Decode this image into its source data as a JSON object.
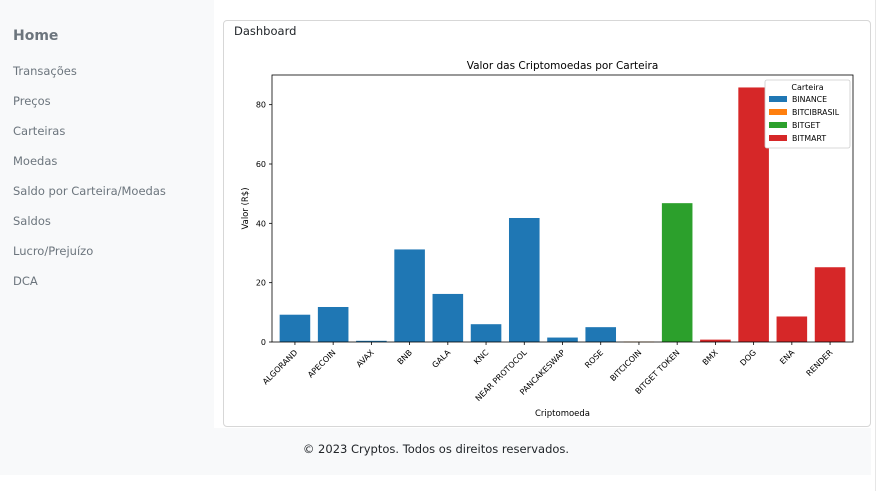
{
  "sidebar": {
    "brand": "Home",
    "items": [
      {
        "label": "Transações"
      },
      {
        "label": "Preços"
      },
      {
        "label": "Carteiras"
      },
      {
        "label": "Moedas"
      },
      {
        "label": "Saldo por Carteira/Moedas"
      },
      {
        "label": "Saldos"
      },
      {
        "label": "Lucro/Prejuízo"
      },
      {
        "label": "DCA"
      }
    ]
  },
  "main": {
    "card_title": "Dashboard"
  },
  "footer": {
    "text": "© 2023 Cryptos. Todos os direitos reservados."
  },
  "chart_data": {
    "type": "bar",
    "title": "Valor das Criptomoedas por Carteira",
    "xlabel": "Criptomoeda",
    "ylabel": "Valor (R$)",
    "ylim": [
      0,
      90
    ],
    "yticks": [
      0,
      20,
      40,
      60,
      80
    ],
    "grid": false,
    "legend_placement": "top-right",
    "legend_title": "Carteira",
    "series": [
      {
        "name": "BINANCE",
        "color": "#1f77b4"
      },
      {
        "name": "BITCIBRASIL",
        "color": "#ff7f0e"
      },
      {
        "name": "BITGET",
        "color": "#2ca02c"
      },
      {
        "name": "BITMART",
        "color": "#d62728"
      }
    ],
    "bars": [
      {
        "category": "ALGORAND",
        "value": 9.2,
        "series": "BINANCE"
      },
      {
        "category": "APECOIN",
        "value": 11.8,
        "series": "BINANCE"
      },
      {
        "category": "AVAX",
        "value": 0.4,
        "series": "BINANCE"
      },
      {
        "category": "BNB",
        "value": 31.2,
        "series": "BINANCE"
      },
      {
        "category": "GALA",
        "value": 16.2,
        "series": "BINANCE"
      },
      {
        "category": "KNC",
        "value": 6.0,
        "series": "BINANCE"
      },
      {
        "category": "NEAR PROTOCOL",
        "value": 41.8,
        "series": "BINANCE"
      },
      {
        "category": "PANCAKESWAP",
        "value": 1.5,
        "series": "BINANCE"
      },
      {
        "category": "ROSE",
        "value": 5.0,
        "series": "BINANCE"
      },
      {
        "category": "BITCICOIN",
        "value": 0.1,
        "series": "BITCIBRASIL"
      },
      {
        "category": "BITGET TOKEN",
        "value": 46.8,
        "series": "BITGET"
      },
      {
        "category": "BMX",
        "value": 0.8,
        "series": "BITMART"
      },
      {
        "category": "DOG",
        "value": 85.8,
        "series": "BITMART"
      },
      {
        "category": "ENA",
        "value": 8.6,
        "series": "BITMART"
      },
      {
        "category": "RENDER",
        "value": 25.2,
        "series": "BITMART"
      }
    ]
  }
}
